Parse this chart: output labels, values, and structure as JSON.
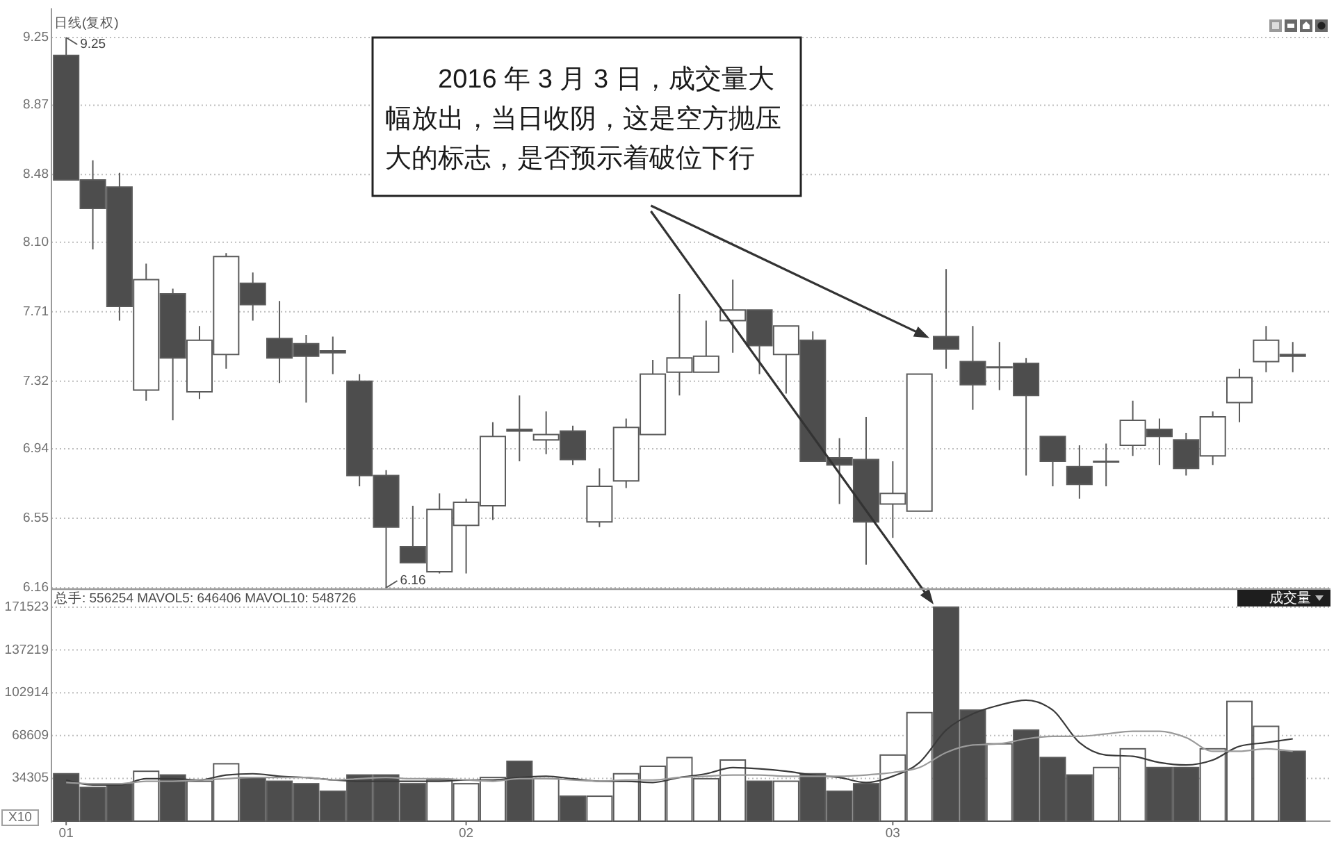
{
  "chart_data": [
    {
      "type": "candlestick",
      "title": "日线(复权)",
      "categories": [
        "01",
        null,
        null,
        null,
        null,
        null,
        null,
        null,
        null,
        null,
        null,
        null,
        null,
        null,
        null,
        "02",
        null,
        null,
        null,
        null,
        null,
        null,
        null,
        null,
        null,
        null,
        null,
        null,
        null,
        null,
        null,
        "03",
        null,
        null,
        null,
        null,
        null,
        null,
        null,
        null,
        null,
        null,
        null,
        null,
        null,
        null,
        null
      ],
      "ohlc": [
        [
          9.15,
          9.25,
          8.45,
          8.45
        ],
        [
          8.45,
          8.56,
          8.06,
          8.29
        ],
        [
          8.41,
          8.49,
          7.66,
          7.74
        ],
        [
          7.27,
          7.98,
          7.21,
          7.89
        ],
        [
          7.81,
          7.84,
          7.1,
          7.45
        ],
        [
          7.26,
          7.63,
          7.22,
          7.55
        ],
        [
          7.47,
          8.04,
          7.39,
          8.02
        ],
        [
          7.87,
          7.93,
          7.66,
          7.75
        ],
        [
          7.56,
          7.77,
          7.31,
          7.45
        ],
        [
          7.53,
          7.58,
          7.2,
          7.46
        ],
        [
          7.49,
          7.57,
          7.36,
          7.48
        ],
        [
          7.32,
          7.36,
          6.73,
          6.79
        ],
        [
          6.79,
          6.82,
          6.16,
          6.5
        ],
        [
          6.39,
          6.62,
          6.3,
          6.3
        ],
        [
          6.25,
          6.69,
          6.24,
          6.6
        ],
        [
          6.51,
          6.66,
          6.24,
          6.64
        ],
        [
          6.62,
          7.09,
          6.54,
          7.01
        ],
        [
          7.05,
          7.24,
          6.87,
          7.04
        ],
        [
          6.99,
          7.15,
          6.91,
          7.02
        ],
        [
          7.04,
          7.07,
          6.85,
          6.88
        ],
        [
          6.53,
          6.83,
          6.5,
          6.73
        ],
        [
          6.76,
          7.11,
          6.72,
          7.06
        ],
        [
          7.02,
          7.44,
          7.02,
          7.36
        ],
        [
          7.37,
          7.81,
          7.24,
          7.45
        ],
        [
          7.37,
          7.66,
          7.37,
          7.46
        ],
        [
          7.66,
          7.89,
          7.48,
          7.72
        ],
        [
          7.72,
          7.72,
          7.36,
          7.52
        ],
        [
          7.47,
          7.63,
          7.25,
          7.63
        ],
        [
          7.55,
          7.6,
          6.87,
          6.87
        ],
        [
          6.89,
          7.0,
          6.63,
          6.85
        ],
        [
          6.88,
          7.12,
          6.29,
          6.53
        ],
        [
          6.63,
          6.87,
          6.44,
          6.69
        ],
        [
          6.59,
          7.36,
          6.59,
          7.36
        ],
        [
          7.57,
          7.95,
          7.39,
          7.5
        ],
        [
          7.43,
          7.63,
          7.16,
          7.3
        ],
        [
          7.4,
          7.54,
          7.27,
          7.4
        ],
        [
          7.42,
          7.45,
          6.79,
          7.24
        ],
        [
          7.01,
          7.01,
          6.73,
          6.87
        ],
        [
          6.84,
          6.96,
          6.66,
          6.74
        ],
        [
          6.87,
          6.97,
          6.73,
          6.87
        ],
        [
          6.96,
          7.21,
          6.9,
          7.1
        ],
        [
          7.05,
          7.11,
          6.85,
          7.01
        ],
        [
          6.99,
          7.03,
          6.79,
          6.83
        ],
        [
          6.9,
          7.15,
          6.85,
          7.12
        ],
        [
          7.2,
          7.39,
          7.09,
          7.34
        ],
        [
          7.43,
          7.63,
          7.37,
          7.55
        ],
        [
          7.47,
          7.54,
          7.37,
          7.46
        ]
      ],
      "colors": [
        "#4d4d4d",
        "#4d4d4d",
        "#4d4d4d",
        "#ffffff",
        "#4d4d4d",
        "#ffffff",
        "#ffffff",
        "#4d4d4d",
        "#4d4d4d",
        "#4d4d4d",
        "#4d4d4d",
        "#4d4d4d",
        "#4d4d4d",
        "#4d4d4d",
        "#ffffff",
        "#ffffff",
        "#ffffff",
        "#4d4d4d",
        "#ffffff",
        "#4d4d4d",
        "#ffffff",
        "#ffffff",
        "#ffffff",
        "#ffffff",
        "#ffffff",
        "#ffffff",
        "#4d4d4d",
        "#ffffff",
        "#4d4d4d",
        "#4d4d4d",
        "#4d4d4d",
        "#ffffff",
        "#ffffff",
        "#4d4d4d",
        "#4d4d4d",
        "#ffffff",
        "#4d4d4d",
        "#4d4d4d",
        "#4d4d4d",
        "#ffffff",
        "#ffffff",
        "#4d4d4d",
        "#4d4d4d",
        "#ffffff",
        "#ffffff",
        "#ffffff",
        "#4d4d4d"
      ],
      "ylim": [
        6.16,
        9.25
      ],
      "yticks": [
        6.16,
        6.55,
        6.94,
        7.32,
        7.71,
        {
          "value": 8.1,
          "label": "8.10"
        },
        8.48,
        8.87,
        9.25
      ],
      "grid": "y",
      "tick_labels": "y",
      "annotations": [
        "2016 年 3 月 3 日，成交量大幅放出，当日收阴，这是空方抛压大的标志，是否预示着破位下行",
        {
          "text": "9.25",
          "x": "01",
          "y": 9.25
        },
        "6.16"
      ]
    },
    {
      "type": "bar",
      "title": "成交量",
      "ylabel": "X10",
      "categories": [
        "01",
        null,
        null,
        null,
        null,
        null,
        null,
        null,
        null,
        null,
        null,
        null,
        null,
        null,
        null,
        "02",
        null,
        null,
        null,
        null,
        null,
        null,
        null,
        null,
        null,
        null,
        null,
        null,
        null,
        null,
        null,
        "03",
        null,
        null,
        null,
        null,
        null,
        null,
        null,
        null,
        null,
        null,
        null,
        null,
        null,
        null,
        null
      ],
      "series": [
        {
          "type": "bar",
          "values": [
            38000,
            27000,
            30000,
            40000,
            37000,
            32000,
            46000,
            35000,
            32000,
            30000,
            24000,
            37000,
            37000,
            30000,
            33000,
            30000,
            35000,
            48000,
            34000,
            20000,
            20000,
            38000,
            44000,
            51000,
            34000,
            49000,
            32000,
            32000,
            38000,
            24000,
            30000,
            53000,
            87000,
            171523,
            89000,
            62000,
            73000,
            51000,
            37000,
            43000,
            58000,
            43000,
            43000,
            58000,
            96000,
            76000,
            56000
          ],
          "colors": [
            "#4d4d4d",
            "#4d4d4d",
            "#4d4d4d",
            "#ffffff",
            "#4d4d4d",
            "#ffffff",
            "#ffffff",
            "#4d4d4d",
            "#4d4d4d",
            "#4d4d4d",
            "#4d4d4d",
            "#4d4d4d",
            "#4d4d4d",
            "#4d4d4d",
            "#ffffff",
            "#ffffff",
            "#ffffff",
            "#4d4d4d",
            "#ffffff",
            "#4d4d4d",
            "#ffffff",
            "#ffffff",
            "#ffffff",
            "#ffffff",
            "#ffffff",
            "#ffffff",
            "#4d4d4d",
            "#ffffff",
            "#4d4d4d",
            "#4d4d4d",
            "#4d4d4d",
            "#ffffff",
            "#ffffff",
            "#4d4d4d",
            "#4d4d4d",
            "#ffffff",
            "#4d4d4d",
            "#4d4d4d",
            "#4d4d4d",
            "#ffffff",
            "#ffffff",
            "#4d4d4d",
            "#4d4d4d",
            "#ffffff",
            "#ffffff",
            "#ffffff",
            "#4d4d4d"
          ]
        },
        {
          "type": "line",
          "color": "#3a3a3a",
          "values": [
            33000,
            29000,
            29000,
            34000,
            34000,
            33000,
            37000,
            38000,
            36000,
            35000,
            33000,
            32000,
            32000,
            32000,
            32000,
            33000,
            33000,
            35000,
            36000,
            34000,
            32000,
            32000,
            31000,
            35000,
            38000,
            43000,
            42000,
            40000,
            37000,
            35000,
            31000,
            36000,
            47000,
            73000,
            86000,
            93000,
            97000,
            89000,
            63000,
            53000,
            52000,
            47000,
            45000,
            49000,
            60000,
            63000,
            66000
          ]
        },
        {
          "type": "line",
          "color": "#9a9a9a",
          "values": [
            31000,
            30000,
            30000,
            32000,
            32000,
            33000,
            34000,
            35000,
            35000,
            35000,
            33000,
            34000,
            35000,
            34000,
            34000,
            33000,
            32000,
            34000,
            34000,
            33000,
            32000,
            33000,
            33000,
            35000,
            36000,
            37000,
            37000,
            36000,
            36000,
            36000,
            37000,
            39000,
            43000,
            55000,
            61000,
            62000,
            66000,
            68000,
            68000,
            70000,
            72000,
            72000,
            67000,
            56000,
            56000,
            58000,
            56000
          ]
        }
      ],
      "ylim": [
        0,
        171523
      ],
      "yticks": [
        34305,
        68609,
        102914,
        137219,
        171523
      ],
      "grid": "y",
      "annotations": [
        "总手: 556254 MAVOL5: 646406 MAVOL10: 548726"
      ]
    }
  ]
}
